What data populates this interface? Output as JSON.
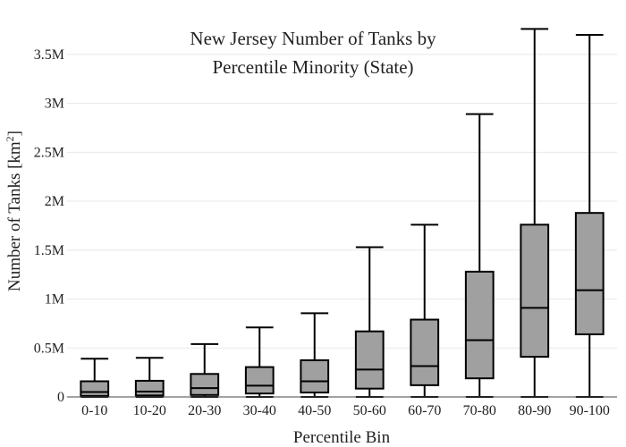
{
  "chart_data": {
    "type": "box",
    "title_lines": [
      "New Jersey Number of Tanks by",
      "Percentile Minority (State)"
    ],
    "xlabel": "Percentile Bin",
    "ylabel": "Number of Tanks  [km",
    "ylabel_sup": "2",
    "ylabel_close": "]",
    "ylim": [
      0,
      3800000
    ],
    "yticks": [
      {
        "value": 0,
        "label": "0"
      },
      {
        "value": 500000,
        "label": "0.5M"
      },
      {
        "value": 1000000,
        "label": "1M"
      },
      {
        "value": 1500000,
        "label": "1.5M"
      },
      {
        "value": 2000000,
        "label": "2M"
      },
      {
        "value": 2500000,
        "label": "2.5M"
      },
      {
        "value": 3000000,
        "label": "3M"
      },
      {
        "value": 3500000,
        "label": "3.5M"
      }
    ],
    "grid": true,
    "categories": [
      "0-10",
      "10-20",
      "20-30",
      "30-40",
      "40-50",
      "50-60",
      "60-70",
      "70-80",
      "80-90",
      "90-100"
    ],
    "boxes": [
      {
        "min": 0,
        "q1": 10000,
        "median": 50000,
        "q3": 160000,
        "max": 390000
      },
      {
        "min": 0,
        "q1": 15000,
        "median": 55000,
        "q3": 165000,
        "max": 400000
      },
      {
        "min": 0,
        "q1": 20000,
        "median": 90000,
        "q3": 235000,
        "max": 540000
      },
      {
        "min": 0,
        "q1": 35000,
        "median": 115000,
        "q3": 305000,
        "max": 710000
      },
      {
        "min": 0,
        "q1": 45000,
        "median": 160000,
        "q3": 375000,
        "max": 855000
      },
      {
        "min": 0,
        "q1": 85000,
        "median": 280000,
        "q3": 670000,
        "max": 1530000
      },
      {
        "min": 0,
        "q1": 120000,
        "median": 315000,
        "q3": 790000,
        "max": 1760000
      },
      {
        "min": 0,
        "q1": 190000,
        "median": 580000,
        "q3": 1280000,
        "max": 2890000
      },
      {
        "min": 0,
        "q1": 410000,
        "median": 910000,
        "q3": 1760000,
        "max": 3760000
      },
      {
        "min": 0,
        "q1": 640000,
        "median": 1090000,
        "q3": 1880000,
        "max": 3700000
      }
    ],
    "colors": {
      "box_fill": "#a0a0a0",
      "line": "#000000",
      "grid": "#e8e8e8"
    }
  }
}
